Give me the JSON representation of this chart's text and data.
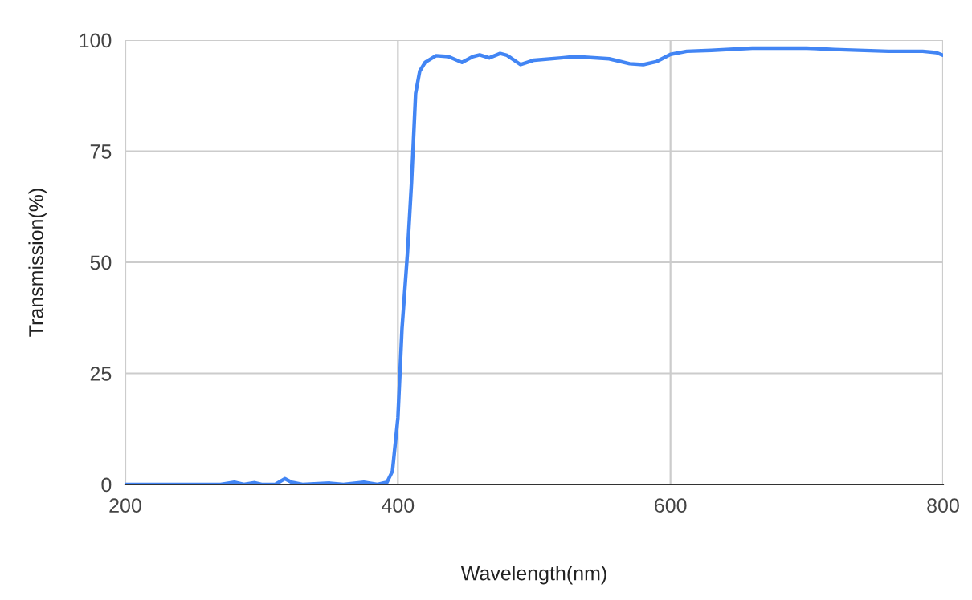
{
  "chart_data": {
    "type": "line",
    "xlabel": "Wavelength(nm)",
    "ylabel": "Transmission(%)",
    "xlim": [
      200,
      800
    ],
    "xticks": [
      200,
      400,
      600,
      800
    ],
    "ylim": [
      0,
      100
    ],
    "yticks": [
      0,
      25,
      50,
      75,
      100
    ],
    "grid": true,
    "marker": "none",
    "line_style": "solid",
    "series": [
      {
        "color": "#4285f4",
        "x": [
          200,
          270,
          280,
          287,
          295,
          300,
          310,
          317,
          322,
          330,
          350,
          360,
          375,
          385,
          392,
          396,
          400,
          403,
          407,
          410,
          413,
          416,
          420,
          428,
          437,
          447,
          455,
          460,
          467,
          475,
          480,
          490,
          500,
          520,
          530,
          555,
          570,
          580,
          590,
          600,
          612,
          630,
          660,
          700,
          720,
          760,
          785,
          795,
          800
        ],
        "values": [
          0,
          0,
          0.5,
          0,
          0.4,
          0,
          0,
          1.3,
          0.5,
          0,
          0.3,
          0,
          0.5,
          0,
          0.5,
          3,
          15,
          35,
          52,
          68,
          88,
          93,
          95,
          96.5,
          96.3,
          95,
          96.3,
          96.7,
          96,
          97,
          96.6,
          94.5,
          95.5,
          96,
          96.3,
          95.8,
          94.7,
          94.5,
          95.2,
          96.8,
          97.5,
          97.7,
          98.2,
          98.2,
          97.9,
          97.5,
          97.5,
          97.2,
          96.6
        ]
      }
    ]
  }
}
